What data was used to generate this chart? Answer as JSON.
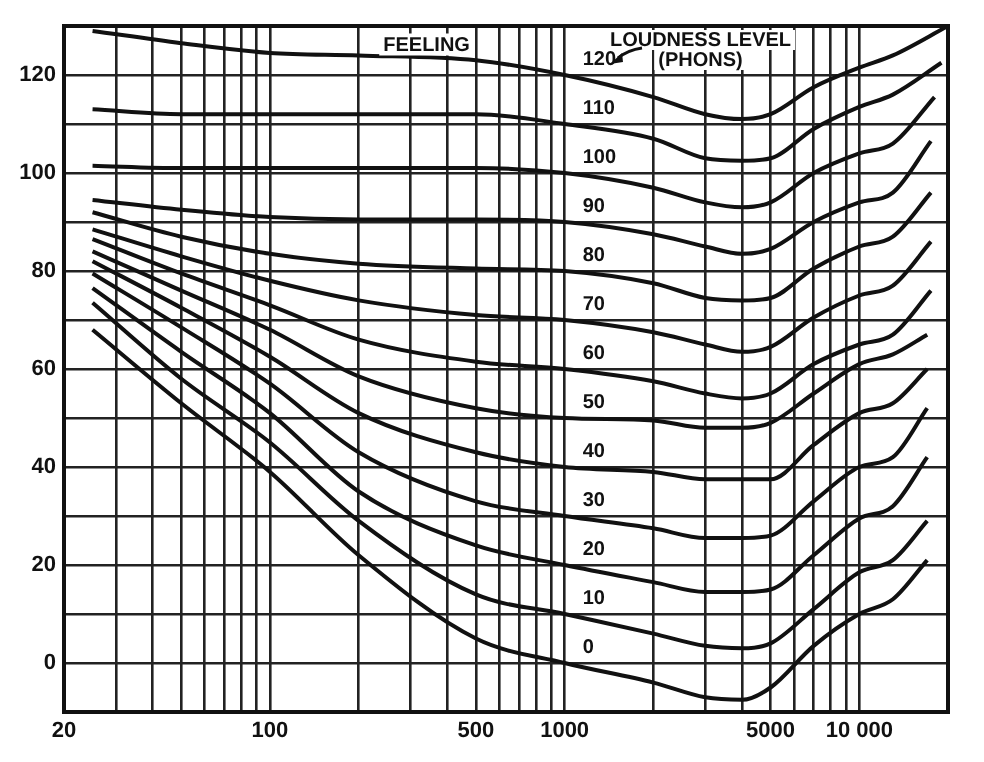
{
  "chart_data": {
    "type": "line",
    "log": "x",
    "grid": true,
    "marker": "none",
    "xlim": [
      20,
      20000
    ],
    "ylim": [
      -10,
      130
    ],
    "xticks": [
      20,
      {
        "value": 30,
        "label": null
      },
      {
        "value": 40,
        "label": null
      },
      {
        "value": 50,
        "label": null
      },
      {
        "value": 60,
        "label": null
      },
      {
        "value": 70,
        "label": null
      },
      {
        "value": 80,
        "label": null
      },
      {
        "value": 90,
        "label": null
      },
      100,
      {
        "value": 200,
        "label": null
      },
      {
        "value": 300,
        "label": null
      },
      {
        "value": 400,
        "label": null
      },
      500,
      {
        "value": 600,
        "label": null
      },
      {
        "value": 700,
        "label": null
      },
      {
        "value": 800,
        "label": null
      },
      {
        "value": 900,
        "label": null
      },
      1000,
      {
        "value": 2000,
        "label": null
      },
      {
        "value": 3000,
        "label": null
      },
      {
        "value": 4000,
        "label": null
      },
      5000,
      {
        "value": 6000,
        "label": null
      },
      {
        "value": 7000,
        "label": null
      },
      {
        "value": 8000,
        "label": null
      },
      {
        "value": 9000,
        "label": null
      },
      {
        "value": 10000,
        "label": "10 000"
      }
    ],
    "yticks": [
      0,
      {
        "value": 10,
        "label": null
      },
      20,
      {
        "value": 30,
        "label": null
      },
      40,
      {
        "value": 50,
        "label": null
      },
      60,
      {
        "value": 70,
        "label": null
      },
      80,
      {
        "value": 90,
        "label": null
      },
      100,
      {
        "value": 110,
        "label": null
      },
      120
    ],
    "annotations": [
      {
        "text": "FEELING",
        "x": 340,
        "y": 126
      },
      "LOUDNESS LEVEL\n(PHONS)"
    ],
    "series": [
      {
        "name": "120",
        "color": "#111111",
        "x": [
          25,
          50,
          100,
          200,
          500,
          1000,
          2000,
          3000,
          4000,
          5000,
          7000,
          10000,
          13000,
          20000
        ],
        "values": [
          129,
          126.5,
          124.5,
          124,
          123,
          120,
          115.5,
          112,
          111,
          112,
          117.5,
          121.5,
          124,
          130
        ]
      },
      {
        "name": "110",
        "color": "#111111",
        "x": [
          25,
          50,
          100,
          200,
          500,
          1000,
          2000,
          3000,
          4000,
          5000,
          7000,
          10000,
          13000,
          19000
        ],
        "values": [
          113,
          112,
          112,
          112,
          112,
          110,
          107,
          103,
          102.5,
          103,
          109,
          113.5,
          116,
          122.5
        ]
      },
      {
        "name": "100",
        "color": "#111111",
        "x": [
          25,
          50,
          100,
          200,
          500,
          1000,
          2000,
          3000,
          4000,
          5000,
          7000,
          10000,
          13000,
          18000
        ],
        "values": [
          101.5,
          101,
          101,
          101,
          101,
          100,
          97,
          94,
          93,
          94,
          100,
          104,
          106,
          115.5
        ]
      },
      {
        "name": "90",
        "color": "#111111",
        "x": [
          25,
          50,
          100,
          200,
          500,
          1000,
          2000,
          3000,
          4000,
          5000,
          7000,
          10000,
          13000,
          17500
        ],
        "values": [
          94.5,
          92.5,
          91,
          90.5,
          90.5,
          90,
          87.5,
          85,
          83.5,
          84.5,
          90,
          94,
          96,
          106.5
        ]
      },
      {
        "name": "80",
        "color": "#111111",
        "x": [
          25,
          50,
          100,
          200,
          500,
          1000,
          2000,
          3000,
          4000,
          5000,
          7000,
          10000,
          13000,
          17500
        ],
        "values": [
          92,
          87,
          83.5,
          81.5,
          80.5,
          80,
          77.5,
          74.5,
          74,
          74.5,
          80.5,
          85,
          87,
          96
        ]
      },
      {
        "name": "70",
        "color": "#111111",
        "x": [
          25,
          50,
          100,
          200,
          500,
          1000,
          2000,
          3000,
          4000,
          5000,
          7000,
          10000,
          13000,
          17500
        ],
        "values": [
          88.5,
          83,
          78,
          74,
          71,
          70,
          67.5,
          65,
          63.5,
          64.5,
          70.5,
          75,
          77,
          86
        ]
      },
      {
        "name": "60",
        "color": "#111111",
        "x": [
          25,
          50,
          100,
          200,
          500,
          1000,
          2000,
          3000,
          4000,
          5000,
          7000,
          10000,
          13000,
          17500
        ],
        "values": [
          86.5,
          79.5,
          73,
          66,
          61.5,
          60,
          57.5,
          55,
          54,
          55,
          61,
          65,
          67,
          76
        ]
      },
      {
        "name": "50",
        "color": "#111111",
        "x": [
          25,
          50,
          100,
          200,
          500,
          1000,
          2000,
          3000,
          4000,
          5000,
          7000,
          10000,
          13000,
          17000
        ],
        "values": [
          84,
          76,
          68,
          58.5,
          52,
          50,
          49.5,
          48,
          48,
          49,
          55,
          61,
          63,
          67
        ]
      },
      {
        "name": "40",
        "color": "#111111",
        "x": [
          25,
          50,
          100,
          200,
          500,
          1000,
          2000,
          3000,
          4000,
          5000,
          7000,
          10000,
          13000,
          17000
        ],
        "values": [
          82,
          72.5,
          62.5,
          51,
          43,
          40,
          39,
          37.5,
          37.5,
          37.5,
          44.5,
          51,
          53,
          60
        ]
      },
      {
        "name": "30",
        "color": "#111111",
        "x": [
          25,
          50,
          100,
          200,
          500,
          1000,
          2000,
          3000,
          4000,
          5000,
          7000,
          10000,
          13000,
          17000
        ],
        "values": [
          79.5,
          68.5,
          57,
          43,
          33,
          30,
          27.5,
          25.5,
          25.5,
          26,
          33,
          40,
          42,
          52
        ]
      },
      {
        "name": "20",
        "color": "#111111",
        "x": [
          25,
          50,
          100,
          200,
          500,
          1000,
          2000,
          3000,
          4000,
          5000,
          7000,
          10000,
          13000,
          17000
        ],
        "values": [
          76.5,
          63.5,
          51,
          35,
          24,
          20,
          16.5,
          14.5,
          14.5,
          15,
          22,
          29.5,
          32,
          42
        ]
      },
      {
        "name": "10",
        "color": "#111111",
        "x": [
          25,
          50,
          100,
          200,
          500,
          1000,
          2000,
          3000,
          4000,
          5000,
          7000,
          10000,
          13000,
          17000
        ],
        "values": [
          73.5,
          58,
          45,
          29,
          14,
          10,
          6,
          3.5,
          3,
          4,
          11,
          18.5,
          21,
          29
        ]
      },
      {
        "name": "0",
        "color": "#111111",
        "x": [
          25,
          50,
          100,
          200,
          500,
          1000,
          2000,
          3000,
          4000,
          5000,
          7000,
          10000,
          13000,
          17000
        ],
        "values": [
          68,
          53,
          39,
          22,
          5,
          0,
          -4,
          -7,
          -7.5,
          -5,
          3.5,
          10,
          13,
          21
        ]
      }
    ]
  }
}
